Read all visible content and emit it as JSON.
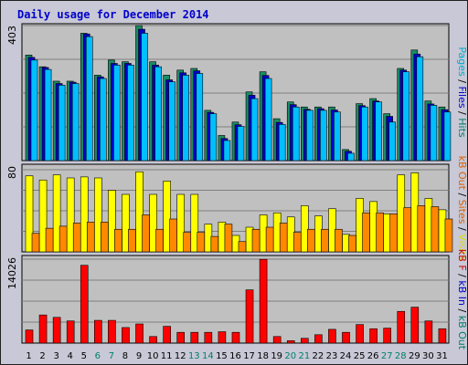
{
  "title": "Daily usage for December 2014",
  "chart_data": [
    {
      "panel": "top",
      "type": "bar",
      "ylim": [
        0,
        403
      ],
      "ytick_labels": [
        "403"
      ],
      "grid": true,
      "side_label": [
        {
          "text": "Pages",
          "color": "#00aacc"
        },
        {
          "text": " / ",
          "color": "#000000"
        },
        {
          "text": "Files",
          "color": "#0000cc"
        },
        {
          "text": " / ",
          "color": "#000000"
        },
        {
          "text": "Hits",
          "color": "#00806a"
        }
      ],
      "categories": [
        "1",
        "2",
        "3",
        "4",
        "5",
        "6",
        "7",
        "8",
        "9",
        "10",
        "11",
        "12",
        "13",
        "14",
        "15",
        "16",
        "17",
        "18",
        "19",
        "20",
        "21",
        "22",
        "23",
        "24",
        "25",
        "26",
        "27",
        "28",
        "29",
        "30",
        "31"
      ],
      "series": [
        {
          "name": "Hits",
          "color": "#1a8c66",
          "values": [
            315,
            280,
            237,
            237,
            380,
            255,
            300,
            295,
            403,
            295,
            255,
            270,
            275,
            150,
            75,
            115,
            205,
            265,
            125,
            175,
            160,
            160,
            160,
            33,
            170,
            185,
            140,
            275,
            330,
            178,
            160
          ]
        },
        {
          "name": "Files",
          "color": "#0000cc",
          "values": [
            308,
            278,
            230,
            234,
            378,
            250,
            290,
            290,
            392,
            285,
            241,
            262,
            268,
            144,
            66,
            107,
            195,
            254,
            114,
            167,
            153,
            155,
            151,
            28,
            164,
            178,
            132,
            270,
            318,
            169,
            152
          ]
        },
        {
          "name": "Pages",
          "color": "#00bfff",
          "values": [
            300,
            272,
            225,
            230,
            370,
            245,
            285,
            285,
            380,
            280,
            235,
            255,
            260,
            140,
            60,
            102,
            185,
            245,
            108,
            160,
            150,
            150,
            145,
            22,
            160,
            175,
            115,
            265,
            310,
            165,
            145
          ]
        }
      ]
    },
    {
      "panel": "middle",
      "type": "bar",
      "ylim": [
        0,
        80
      ],
      "ytick_labels": [
        "80"
      ],
      "grid": true,
      "side_label": [
        {
          "text": "kB Out",
          "color": "#e06000"
        },
        {
          "text": " / ",
          "color": "#000000"
        },
        {
          "text": "Sites",
          "color": "#e06000"
        },
        {
          "text": " / ",
          "color": "#000000"
        },
        {
          "text": "Visits",
          "color": "#dddd00"
        }
      ],
      "categories": [
        "1",
        "2",
        "3",
        "4",
        "5",
        "6",
        "7",
        "8",
        "9",
        "10",
        "11",
        "12",
        "13",
        "14",
        "15",
        "16",
        "17",
        "18",
        "19",
        "20",
        "21",
        "22",
        "23",
        "24",
        "25",
        "26",
        "27",
        "28",
        "29",
        "30",
        "31"
      ],
      "series": [
        {
          "name": "Visits",
          "color": "#ffff00",
          "values": [
            74,
            70,
            75,
            72,
            73,
            72,
            60,
            56,
            78,
            56,
            69,
            56,
            56,
            27,
            29,
            16,
            24,
            36,
            38,
            34,
            45,
            35,
            42,
            17,
            52,
            49,
            37,
            75,
            77,
            52,
            41
          ]
        },
        {
          "name": "Sites",
          "color": "#ff8800",
          "values": [
            18,
            23,
            25,
            28,
            29,
            29,
            22,
            22,
            36,
            22,
            32,
            19,
            19,
            15,
            27,
            10,
            22,
            24,
            28,
            19,
            22,
            22,
            22,
            16,
            38,
            38,
            37,
            43,
            45,
            44,
            32
          ]
        }
      ]
    },
    {
      "panel": "bottom",
      "type": "bar",
      "ylim": [
        0,
        14026
      ],
      "ytick_labels": [
        "14026"
      ],
      "grid": true,
      "side_label": [
        {
          "text": "kB F",
          "color": "#cc0000"
        },
        {
          "text": " / ",
          "color": "#000000"
        },
        {
          "text": "kB In",
          "color": "#0000cc"
        },
        {
          "text": " / ",
          "color": "#000000"
        },
        {
          "text": "kB Out",
          "color": "#00806a"
        }
      ],
      "categories": [
        "1",
        "2",
        "3",
        "4",
        "5",
        "6",
        "7",
        "8",
        "9",
        "10",
        "11",
        "12",
        "13",
        "14",
        "15",
        "16",
        "17",
        "18",
        "19",
        "20",
        "21",
        "22",
        "23",
        "24",
        "25",
        "26",
        "27",
        "28",
        "29",
        "30",
        "31"
      ],
      "series": [
        {
          "name": "kB F",
          "color": "#ff0000",
          "values": [
            2200,
            4700,
            4300,
            3700,
            13000,
            3800,
            3800,
            2600,
            3200,
            1100,
            2800,
            1800,
            1800,
            1800,
            1900,
            1800,
            8900,
            14000,
            1100,
            400,
            800,
            1400,
            2300,
            1800,
            3100,
            2400,
            2500,
            5300,
            6000,
            3700,
            2400
          ]
        }
      ]
    }
  ],
  "x_labels": [
    {
      "text": "1",
      "weekend": false
    },
    {
      "text": "2",
      "weekend": false
    },
    {
      "text": "3",
      "weekend": false
    },
    {
      "text": "4",
      "weekend": false
    },
    {
      "text": "5",
      "weekend": false
    },
    {
      "text": "6",
      "weekend": true
    },
    {
      "text": "7",
      "weekend": true
    },
    {
      "text": "8",
      "weekend": false
    },
    {
      "text": "9",
      "weekend": false
    },
    {
      "text": "10",
      "weekend": false
    },
    {
      "text": "11",
      "weekend": false
    },
    {
      "text": "12",
      "weekend": false
    },
    {
      "text": "13",
      "weekend": true
    },
    {
      "text": "14",
      "weekend": true
    },
    {
      "text": "15",
      "weekend": false
    },
    {
      "text": "16",
      "weekend": false
    },
    {
      "text": "17",
      "weekend": false
    },
    {
      "text": "18",
      "weekend": false
    },
    {
      "text": "19",
      "weekend": false
    },
    {
      "text": "20",
      "weekend": true
    },
    {
      "text": "21",
      "weekend": true
    },
    {
      "text": "22",
      "weekend": false
    },
    {
      "text": "23",
      "weekend": false
    },
    {
      "text": "24",
      "weekend": false
    },
    {
      "text": "25",
      "weekend": false
    },
    {
      "text": "26",
      "weekend": false
    },
    {
      "text": "27",
      "weekend": true
    },
    {
      "text": "28",
      "weekend": true
    },
    {
      "text": "29",
      "weekend": false
    },
    {
      "text": "30",
      "weekend": false
    },
    {
      "text": "31",
      "weekend": false
    }
  ],
  "colors": {
    "frame_bg": "#c8c8d6",
    "plot_bg": "#c0c0c0",
    "title": "#0000cc",
    "weekday_label": "#000000",
    "weekend_label": "#00806a"
  }
}
